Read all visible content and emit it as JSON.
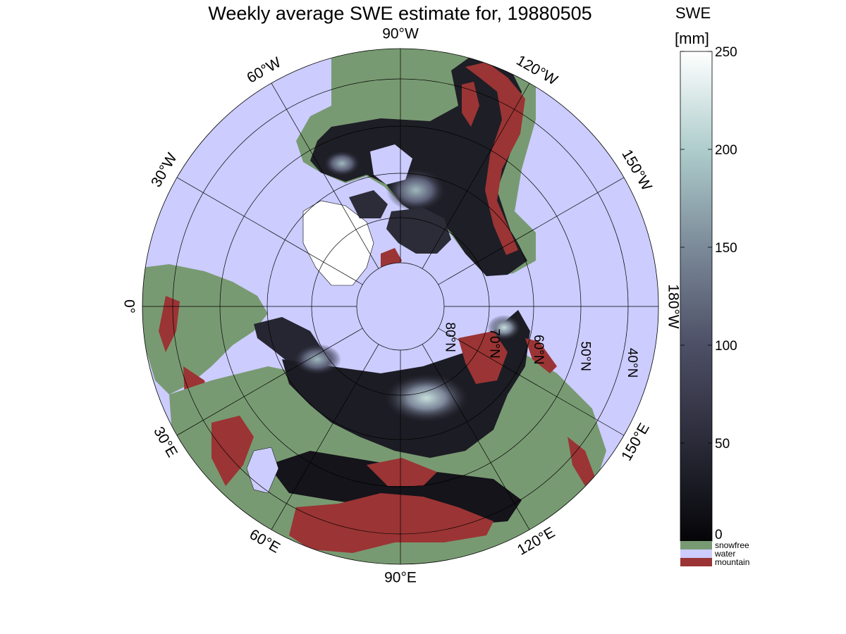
{
  "title": "Weekly average SWE estimate for, 19880505",
  "colorbar": {
    "title_line1": "SWE",
    "title_line2": "[mm]",
    "ticks": [
      {
        "label": "0",
        "value": 0
      },
      {
        "label": "50",
        "value": 50
      },
      {
        "label": "100",
        "value": 100
      },
      {
        "label": "150",
        "value": 150
      },
      {
        "label": "200",
        "value": 200
      },
      {
        "label": "250",
        "value": 250
      }
    ],
    "range": [
      0,
      250
    ],
    "ramp_colors": [
      "#050508",
      "#2a2a38",
      "#4d4f66",
      "#7b8a99",
      "#aecdcc",
      "#ffffff"
    ],
    "categories": [
      {
        "label": "snowfree",
        "color": "#789a72"
      },
      {
        "label": "water",
        "color": "#ccccff"
      },
      {
        "label": "mountain",
        "color": "#9b3434"
      }
    ]
  },
  "map": {
    "projection": "north polar stereographic",
    "ocean_color": "#ccccff",
    "land_color": "#789a72",
    "snow_color": "#1c1c22",
    "mountain_color": "#9b3434",
    "longitude_labels": [
      {
        "text": "90°W",
        "lon": "90W"
      },
      {
        "text": "120°W",
        "lon": "120W"
      },
      {
        "text": "150°W",
        "lon": "150W"
      },
      {
        "text": "180°W",
        "lon": "180W"
      },
      {
        "text": "150°E",
        "lon": "150E"
      },
      {
        "text": "120°E",
        "lon": "120E"
      },
      {
        "text": "90°E",
        "lon": "90E"
      },
      {
        "text": "60°E",
        "lon": "60E"
      },
      {
        "text": "30°E",
        "lon": "30E"
      },
      {
        "text": "0°",
        "lon": "0"
      },
      {
        "text": "30°W",
        "lon": "30W"
      },
      {
        "text": "60°W",
        "lon": "60W"
      }
    ],
    "latitude_labels": [
      {
        "text": "80°N",
        "lat": 80
      },
      {
        "text": "70°N",
        "lat": 70
      },
      {
        "text": "60°N",
        "lat": 60
      },
      {
        "text": "50°N",
        "lat": 50
      },
      {
        "text": "40°N",
        "lat": 40
      }
    ]
  }
}
